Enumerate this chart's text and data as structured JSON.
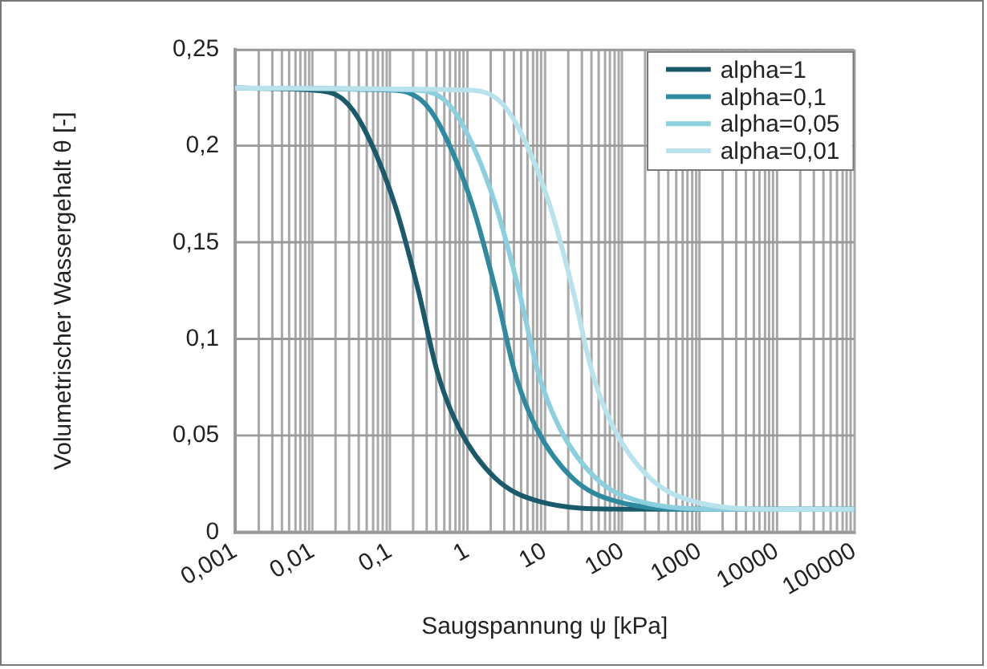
{
  "chart_data": {
    "type": "line",
    "xlabel": "Saugspannung ψ [kPa]",
    "ylabel": "Volumetrischer Wassergehalt θ [-]",
    "log": "x",
    "grid": true,
    "legend": "top right",
    "marker": "none",
    "line_style": "solid",
    "xlim": [
      0.001,
      100000
    ],
    "ylim": [
      0,
      0.25
    ],
    "xticks": [
      {
        "value": 0.001,
        "label": "0,001"
      },
      {
        "value": 0.01,
        "label": "0,01"
      },
      {
        "value": 0.1,
        "label": "0,1"
      },
      1,
      10,
      100,
      1000,
      10000,
      100000
    ],
    "yticks": [
      0,
      {
        "value": 0.05,
        "label": "0,05"
      },
      {
        "value": 0.1,
        "label": "0,1"
      },
      {
        "value": 0.15,
        "label": "0,15"
      },
      {
        "value": 0.2,
        "label": "0,2"
      },
      {
        "value": 0.25,
        "label": "0,25"
      }
    ],
    "series": [
      {
        "name": "alpha=1",
        "color": "#1b5a6b",
        "x": [
          0.001,
          0.01,
          0.025,
          0.045,
          0.115,
          0.23,
          0.41,
          0.78,
          2.3,
          8.5,
          100,
          100000
        ],
        "values": [
          0.23,
          0.229,
          0.224,
          0.21,
          0.17,
          0.126,
          0.083,
          0.054,
          0.028,
          0.016,
          0.012,
          0.012
        ]
      },
      {
        "name": "alpha=0,1",
        "color": "#2e8a9e",
        "x": [
          0.001,
          0.1,
          0.25,
          0.45,
          1.15,
          2.3,
          4.1,
          7.8,
          23,
          85,
          1000,
          100000
        ],
        "values": [
          0.23,
          0.229,
          0.224,
          0.21,
          0.17,
          0.126,
          0.083,
          0.054,
          0.028,
          0.016,
          0.012,
          0.012
        ]
      },
      {
        "name": "alpha=0,05",
        "color": "#8ccfdf",
        "x": [
          0.001,
          0.2,
          0.5,
          0.9,
          2.3,
          4.6,
          8.2,
          15.6,
          46,
          170,
          2000,
          100000
        ],
        "values": [
          0.23,
          0.229,
          0.224,
          0.21,
          0.17,
          0.126,
          0.083,
          0.054,
          0.028,
          0.016,
          0.012,
          0.012
        ]
      },
      {
        "name": "alpha=0,01",
        "color": "#b8e3ec",
        "x": [
          0.001,
          1,
          2.5,
          4.5,
          11.5,
          23,
          41,
          78,
          230,
          850,
          10000,
          100000
        ],
        "values": [
          0.23,
          0.229,
          0.224,
          0.21,
          0.17,
          0.126,
          0.083,
          0.054,
          0.028,
          0.016,
          0.012,
          0.012
        ]
      }
    ]
  }
}
